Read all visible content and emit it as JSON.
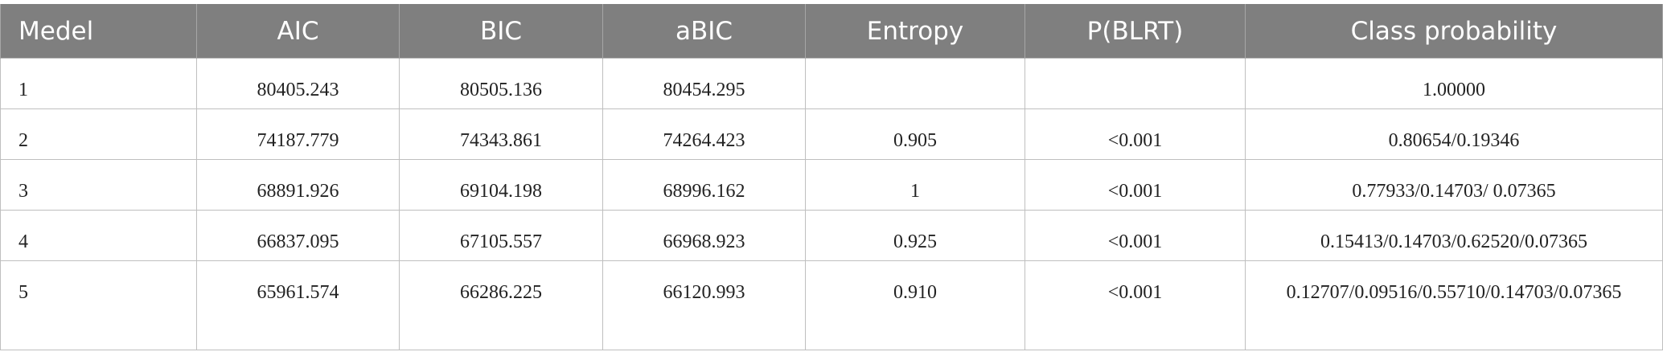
{
  "table": {
    "header": [
      "Medel",
      "AIC",
      "BIC",
      "aBIC",
      "Entropy",
      "P(BLRT)",
      "Class probability"
    ],
    "rows": [
      [
        "1",
        "80405.243",
        "80505.136",
        "80454.295",
        null,
        null,
        "1.00000"
      ],
      [
        "2",
        "74187.779",
        "74343.861",
        "74264.423",
        "0.905",
        "<0.001",
        "0.80654/0.19346"
      ],
      [
        "3",
        "68891.926",
        "69104.198",
        "68996.162",
        "1",
        "<0.001",
        "0.77933/0.14703/ 0.07365"
      ],
      [
        "4",
        "66837.095",
        "67105.557",
        "66968.923",
        "0.925",
        "<0.001",
        "0.15413/0.14703/0.62520/0.07365"
      ],
      [
        "5",
        "65961.574",
        "66286.225",
        "66120.993",
        "0.910",
        "<0.001",
        "0.12707/0.09516/0.55710/0.14703/0.07365"
      ]
    ]
  }
}
